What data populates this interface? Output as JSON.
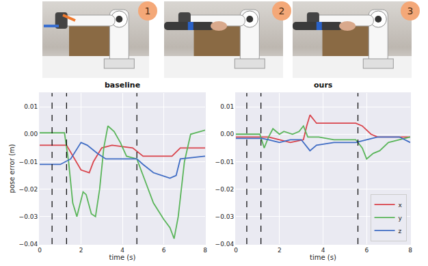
{
  "panels": [
    {
      "label": "1"
    },
    {
      "label": "2"
    },
    {
      "label": "3"
    }
  ],
  "chart_data": [
    {
      "type": "line",
      "title": "baseline",
      "xlabel": "time (s)",
      "ylabel": "pose error (m)",
      "xlim": [
        0,
        8
      ],
      "ylim": [
        -0.04,
        0.015
      ],
      "xticks": [
        0,
        2,
        4,
        6,
        8
      ],
      "yticks": [
        {
          "value": -0.04,
          "label": "−0.04"
        },
        {
          "value": -0.03,
          "label": "−0.03"
        },
        {
          "value": -0.02,
          "label": "−0.02"
        },
        {
          "value": -0.01,
          "label": "−0.01"
        },
        {
          "value": 0,
          "label": "0.00"
        },
        {
          "value": 0.01,
          "label": "0.01"
        }
      ],
      "grid": true,
      "vlines": [
        0.6,
        1.3,
        4.7
      ],
      "series": [
        {
          "name": "x",
          "color": "#d9434b",
          "x": [
            0,
            1.3,
            2.0,
            2.4,
            2.6,
            3.0,
            3.5,
            4.5,
            5.0,
            6.4,
            6.8,
            8
          ],
          "values": [
            -0.004,
            -0.004,
            -0.013,
            -0.014,
            -0.01,
            -0.005,
            -0.004,
            -0.005,
            -0.008,
            -0.008,
            -0.005,
            -0.005
          ]
        },
        {
          "name": "y",
          "color": "#5ab55a",
          "x": [
            0,
            1.2,
            1.4,
            1.6,
            1.8,
            2.1,
            2.25,
            2.5,
            2.7,
            2.9,
            3.1,
            3.3,
            3.6,
            3.9,
            4.2,
            4.7,
            5.0,
            5.5,
            6.0,
            6.3,
            6.5,
            6.7,
            7.0,
            7.3,
            8
          ],
          "values": [
            0.0005,
            0.0005,
            -0.01,
            -0.025,
            -0.03,
            -0.021,
            -0.022,
            -0.029,
            -0.03,
            -0.02,
            -0.005,
            0.003,
            0.001,
            -0.003,
            -0.008,
            -0.009,
            -0.015,
            -0.025,
            -0.031,
            -0.034,
            -0.038,
            -0.03,
            -0.01,
            0.0,
            0.0015
          ]
        },
        {
          "name": "z",
          "color": "#3f6cc4",
          "x": [
            0,
            1.0,
            1.5,
            2.0,
            2.3,
            2.8,
            3.2,
            4.7,
            5.0,
            5.5,
            6.3,
            6.6,
            6.8,
            8
          ],
          "values": [
            -0.011,
            -0.011,
            -0.009,
            -0.003,
            -0.004,
            -0.007,
            -0.009,
            -0.009,
            -0.011,
            -0.014,
            -0.016,
            -0.015,
            -0.009,
            -0.008
          ]
        }
      ]
    },
    {
      "type": "line",
      "title": "ours",
      "xlabel": "time (s)",
      "xlim": [
        0,
        8
      ],
      "ylim": [
        -0.04,
        0.015
      ],
      "xticks": [
        0,
        2,
        4,
        6,
        8
      ],
      "yticks": [
        {
          "value": -0.04,
          "label": "−0.04"
        },
        {
          "value": -0.03,
          "label": "−0.03"
        },
        {
          "value": -0.02,
          "label": "−0.02"
        },
        {
          "value": -0.01,
          "label": "−0.01"
        },
        {
          "value": 0,
          "label": "0.00"
        },
        {
          "value": 0.01,
          "label": "0.01"
        }
      ],
      "grid": true,
      "legend": "lower right",
      "vlines": [
        0.5,
        1.15,
        5.6
      ],
      "series": [
        {
          "name": "x",
          "color": "#d9434b",
          "x": [
            0,
            1.0,
            1.5,
            2.0,
            2.5,
            3.1,
            3.25,
            3.4,
            3.7,
            5.5,
            5.8,
            6.2,
            6.5,
            8
          ],
          "values": [
            -0.001,
            -0.001,
            -0.001,
            -0.002,
            -0.003,
            -0.002,
            0.003,
            0.007,
            0.004,
            0.004,
            0.003,
            0.0,
            -0.001,
            -0.001
          ]
        },
        {
          "name": "y",
          "color": "#5ab55a",
          "x": [
            0,
            1.1,
            1.3,
            1.5,
            1.7,
            2.0,
            2.2,
            2.6,
            2.9,
            3.1,
            3.3,
            3.8,
            4.5,
            5.5,
            5.8,
            6.0,
            6.3,
            6.6,
            7.0,
            7.5,
            8
          ],
          "values": [
            0.0,
            0.0,
            -0.005,
            -0.001,
            0.002,
            0.0,
            0.001,
            0.0,
            0.001,
            0.003,
            -0.001,
            -0.001,
            -0.002,
            -0.002,
            -0.005,
            -0.009,
            -0.007,
            -0.006,
            -0.003,
            -0.002,
            -0.001
          ]
        },
        {
          "name": "z",
          "color": "#3f6cc4",
          "x": [
            0,
            1.2,
            1.5,
            2.0,
            2.5,
            3.0,
            3.4,
            3.7,
            4.5,
            5.5,
            6.0,
            6.5,
            7.5,
            8
          ],
          "values": [
            -0.0015,
            -0.0015,
            -0.002,
            -0.003,
            -0.002,
            -0.002,
            -0.006,
            -0.004,
            -0.003,
            -0.003,
            -0.002,
            -0.001,
            -0.001,
            -0.003
          ]
        }
      ]
    }
  ]
}
